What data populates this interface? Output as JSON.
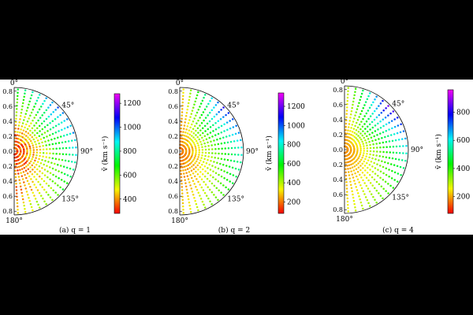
{
  "chart_data": [
    {
      "type": "scatter",
      "subtitle": "(a) q = 1",
      "coordinate_system": "polar half-disk (angle 0° at top to 180° at bottom)",
      "radial_ticks": [
        "0.8",
        "0.6",
        "0.4",
        "0.2",
        "0.0",
        "0.2",
        "0.4",
        "0.6",
        "0.8"
      ],
      "angle_labels": [
        "0°",
        "45°",
        "90°",
        "135°",
        "180°"
      ],
      "r_max": 0.85,
      "colorbar": {
        "label": "v̄ (km s⁻¹)",
        "ticks": [
          "1200",
          "1000",
          "800",
          "600",
          "400"
        ],
        "vmin": 280,
        "vmax": 1280
      },
      "field_description": "low values (~300-450) near center, rising outward to ~1000 at the rim near 45°-90°",
      "v_center": 330,
      "v_rim_at_0deg": 700,
      "v_rim_at_45deg": 1050,
      "v_rim_at_90deg": 900,
      "v_rim_at_135deg": 650,
      "v_rim_at_180deg": 450,
      "noise": 0.35
    },
    {
      "type": "scatter",
      "subtitle": "(b) q = 2",
      "coordinate_system": "polar half-disk (angle 0° at top to 180° at bottom)",
      "radial_ticks": [
        "0.8",
        "0.6",
        "0.4",
        "0.2",
        "0.0",
        "0.2",
        "0.4",
        "0.6",
        "0.8"
      ],
      "angle_labels": [
        "0°",
        "45°",
        "90°",
        "135°",
        "180°"
      ],
      "r_max": 0.85,
      "colorbar": {
        "label": "v̄ (km s⁻¹)",
        "ticks": [
          "1200",
          "1000",
          "800",
          "600",
          "400",
          "200"
        ],
        "vmin": 80,
        "vmax": 1340
      },
      "field_description": "red/orange (~150-300) at center and along the 0°/180° edges, increasing to ~1100 at the rim near 45°",
      "v_center": 200,
      "v_rim_at_0deg": 250,
      "v_rim_at_45deg": 1150,
      "v_rim_at_90deg": 850,
      "v_rim_at_135deg": 550,
      "v_rim_at_180deg": 300,
      "noise": 0.15
    },
    {
      "type": "scatter",
      "subtitle": "(c) q = 4",
      "coordinate_system": "polar half-disk (angle 0° at top to 180° at bottom)",
      "radial_ticks": [
        "0.8",
        "0.6",
        "0.4",
        "0.2",
        "0.0",
        "0.2",
        "0.4",
        "0.6",
        "0.8"
      ],
      "angle_labels": [
        "0°",
        "45°",
        "90°",
        "135°",
        "180°"
      ],
      "r_max": 0.85,
      "colorbar": {
        "label": "v̄ (km s⁻¹)",
        "ticks": [
          "800",
          "600",
          "400",
          "200"
        ],
        "vmin": 80,
        "vmax": 960
      },
      "field_description": "smooth field: ~200 at center rising to ~900 at the rim near 45°, ~250 near 0°/180°",
      "v_center": 180,
      "v_rim_at_0deg": 260,
      "v_rim_at_45deg": 900,
      "v_rim_at_90deg": 620,
      "v_rim_at_135deg": 400,
      "v_rim_at_180deg": 260,
      "noise": 0.05
    }
  ]
}
